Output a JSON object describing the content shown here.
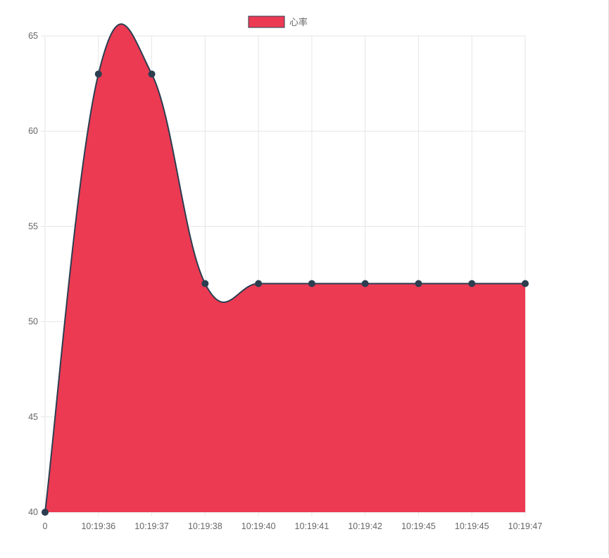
{
  "chart_data": {
    "type": "area",
    "categories": [
      "0",
      "10:19:36",
      "10:19:37",
      "10:19:38",
      "10:19:40",
      "10:19:41",
      "10:19:42",
      "10:19:45",
      "10:19:45",
      "10:19:47"
    ],
    "series": [
      {
        "name": "心率",
        "values": [
          40,
          63,
          63,
          52,
          52,
          52,
          52,
          52,
          52,
          52
        ]
      }
    ],
    "title": "",
    "xlabel": "",
    "ylabel": "",
    "ylim": [
      40,
      65
    ],
    "yticks": [
      "40",
      "45",
      "50",
      "55",
      "60",
      "65"
    ],
    "grid": true,
    "legend": "top-center",
    "colors": {
      "fill": "#EC3A53",
      "line": "#2C3E50",
      "point": "#2C3E50",
      "grid": "#E6E6E6",
      "tick_text": "#666666"
    }
  }
}
